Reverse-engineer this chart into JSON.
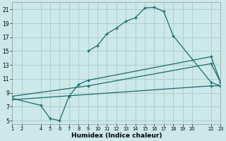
{
  "xlabel": "Humidex (Indice chaleur)",
  "xlim": [
    1,
    23
  ],
  "ylim": [
    4.5,
    22
  ],
  "xticks": [
    1,
    2,
    4,
    5,
    6,
    7,
    8,
    9,
    10,
    11,
    12,
    13,
    14,
    15,
    16,
    17,
    18,
    19,
    20,
    22,
    23
  ],
  "yticks": [
    5,
    7,
    9,
    11,
    13,
    15,
    17,
    19,
    21
  ],
  "bg_color": "#cce8e8",
  "grid_color": "#aacccc",
  "line_color": "#1a6b6b",
  "line1_x": [
    9,
    10,
    11,
    12,
    13,
    14,
    15,
    16,
    17,
    18,
    22,
    23
  ],
  "line1_y": [
    15.0,
    15.8,
    17.5,
    18.3,
    19.3,
    19.8,
    21.2,
    21.3,
    20.7,
    17.2,
    10.5,
    10.0
  ],
  "line2_x": [
    1,
    4,
    5,
    6,
    7,
    8,
    9,
    22,
    23
  ],
  "line2_y": [
    8.2,
    7.2,
    5.3,
    5.0,
    8.5,
    10.2,
    10.8,
    14.2,
    10.5
  ],
  "line3_x": [
    1,
    9,
    22,
    23
  ],
  "line3_y": [
    8.5,
    10.0,
    13.2,
    10.5
  ],
  "line4_x": [
    1,
    22,
    23
  ],
  "line4_y": [
    8.0,
    10.0,
    10.0
  ]
}
